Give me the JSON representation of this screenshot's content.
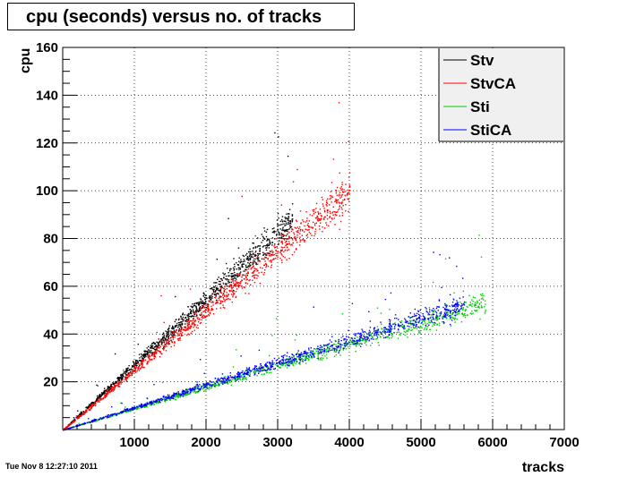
{
  "title": "cpu (seconds) versus no. of tracks",
  "footer": "Tue Nov  8 12:27:10 2011",
  "colors": {
    "Stv": "#000000",
    "StvCA": "#ff0000",
    "Sti": "#00cc00",
    "StiCA": "#0000ff"
  },
  "chart_data": {
    "type": "scatter",
    "title": "cpu (seconds) versus no. of tracks",
    "xlabel": "tracks",
    "ylabel": "cpu",
    "xlim": [
      0,
      7000
    ],
    "ylim": [
      0,
      160
    ],
    "xticks": [
      "1000",
      "2000",
      "3000",
      "4000",
      "5000",
      "6000",
      "7000"
    ],
    "yticks": [
      "20",
      "40",
      "60",
      "80",
      "100",
      "120",
      "140",
      "160"
    ],
    "grid": true,
    "legend_position": "top-right",
    "series": [
      {
        "name": "Stv",
        "color": "#000000",
        "slope_cpu_per_track": 0.0275,
        "x_range": [
          0,
          3200
        ]
      },
      {
        "name": "StvCA",
        "color": "#ff0000",
        "slope_cpu_per_track": 0.025,
        "x_range": [
          0,
          4000
        ]
      },
      {
        "name": "Sti",
        "color": "#00cc00",
        "slope_cpu_per_track": 0.009,
        "x_range": [
          0,
          5900
        ]
      },
      {
        "name": "StiCA",
        "color": "#0000ff",
        "slope_cpu_per_track": 0.0094,
        "x_range": [
          0,
          5600
        ]
      }
    ]
  }
}
